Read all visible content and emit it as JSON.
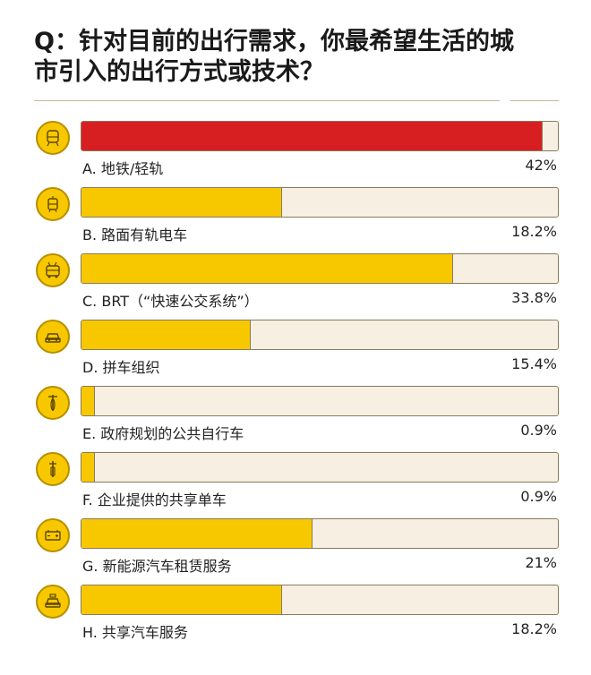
{
  "title": "Q：针对目前的出行需求，你最希望生活的城市引入的出行方式或技术？",
  "colors": {
    "accent": "#f7c800",
    "highlight": "#d71e20",
    "track": "#f6efe2"
  },
  "chart_data": {
    "type": "bar",
    "orientation": "horizontal",
    "xlim": [
      0,
      42
    ],
    "categories": [
      "A.  地铁/轻轨",
      "B.  路面有轨电车",
      "C.  BRT（“快速公交系统”）",
      "D.  拼车组织",
      "E.  政府规划的公共自行车",
      "F.  企业提供的共享单车",
      "G.  新能源汽车租赁服务",
      "H.  共享汽车服务"
    ],
    "values": [
      42,
      18.2,
      33.8,
      15.4,
      0.9,
      0.9,
      21,
      18.2
    ],
    "value_labels": [
      "42%",
      "18.2%",
      "33.8%",
      "15.4%",
      "0.9%",
      "0.9%",
      "21%",
      "18.2%"
    ],
    "icons": [
      "metro-icon",
      "tram-icon",
      "trolleybus-icon",
      "car-icon",
      "bicycle-icon",
      "shared-bike-icon",
      "ev-battery-icon",
      "taxi-icon"
    ],
    "highlight_index": 0
  }
}
